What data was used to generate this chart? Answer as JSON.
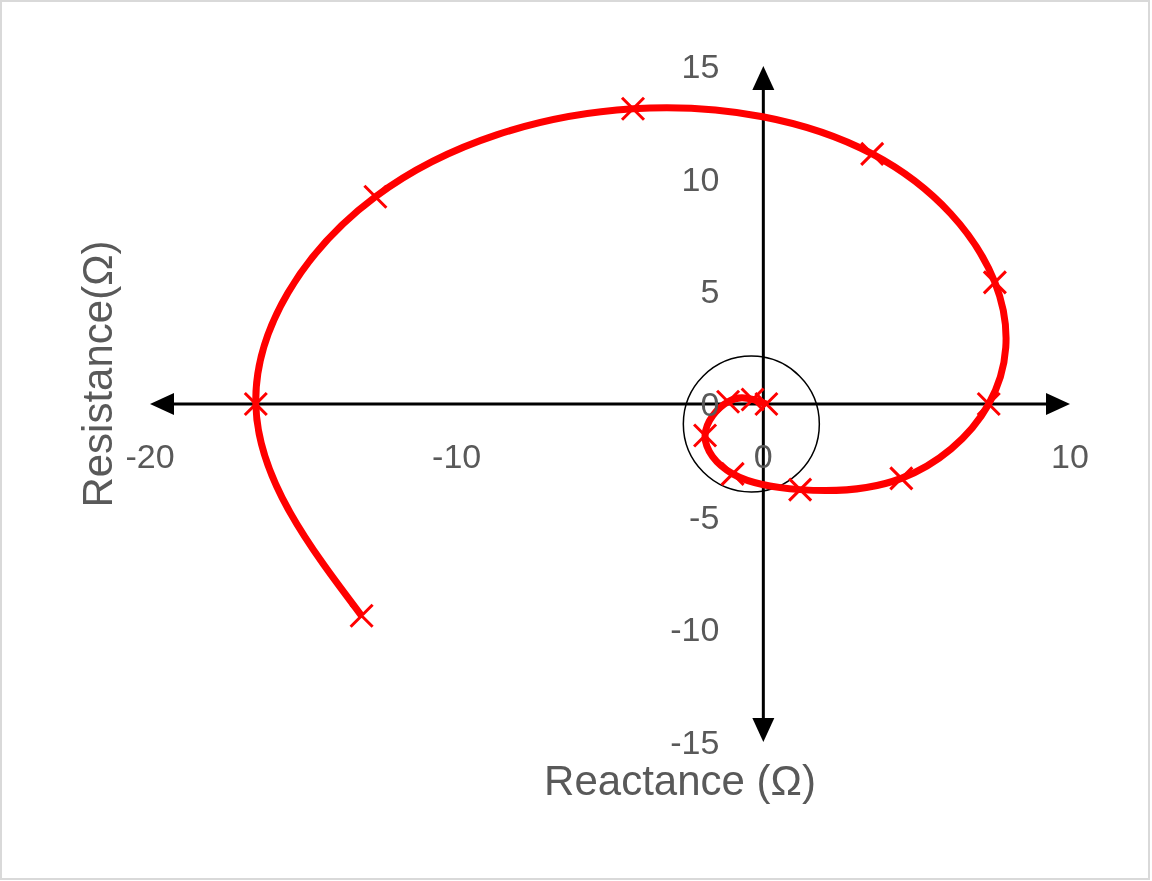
{
  "chart_data": {
    "type": "line",
    "xlabel": "Reactance (Ω)",
    "ylabel": "Resistance(Ω)",
    "x": [
      -13.1,
      -16.55,
      -12.65,
      -4.25,
      3.55,
      7.55,
      7.35,
      4.5,
      1.2,
      -1.0,
      -1.9,
      -1.15,
      -0.35,
      0.1
    ],
    "series": [
      {
        "color": "#ff0000",
        "values": [
          -9.4,
          0,
          9.2,
          13.1,
          11.1,
          5.4,
          0,
          -3.3,
          -3.8,
          -3.1,
          -1.4,
          0.1,
          0.2,
          0
        ]
      }
    ],
    "xlim": [
      -20,
      10
    ],
    "xticks": [
      -20,
      -10,
      0,
      10
    ],
    "ylim": [
      -15,
      15
    ],
    "yticks": [
      -15,
      -10,
      -5,
      0,
      5,
      10,
      15
    ],
    "marker": "cross",
    "line_style": "solid",
    "grid": false,
    "legend": false
  }
}
